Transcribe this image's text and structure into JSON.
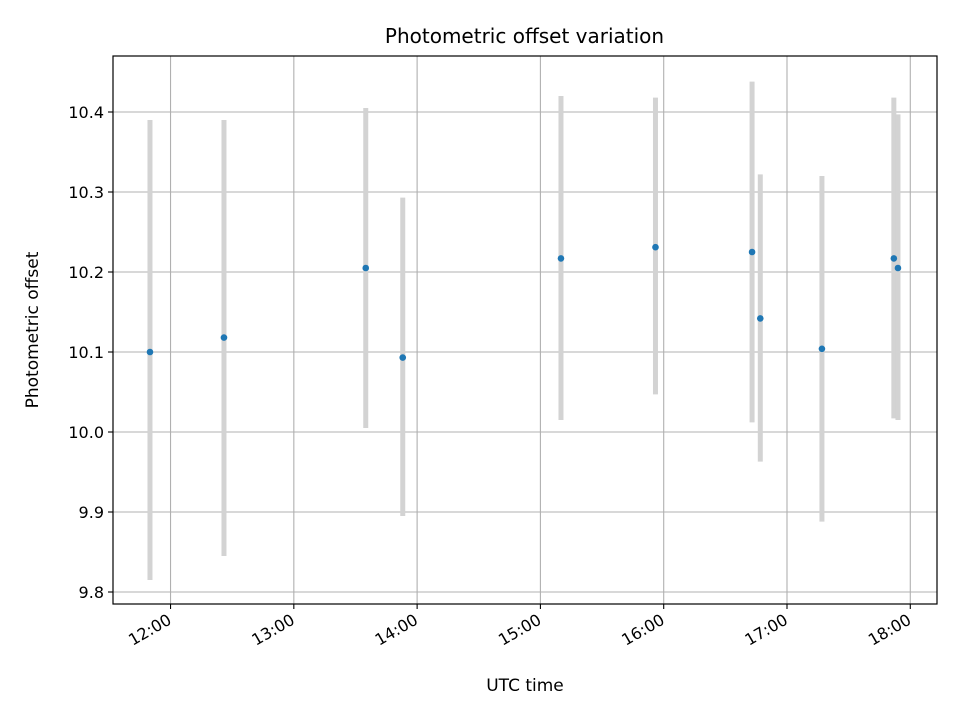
{
  "chart_data": {
    "type": "scatter",
    "title": "Photometric offset variation",
    "xlabel": "UTC time",
    "ylabel": "Photometric offset",
    "x_ticks": [
      "12:00",
      "13:00",
      "14:00",
      "15:00",
      "16:00",
      "17:00",
      "18:00"
    ],
    "y_ticks": [
      "9.8",
      "9.9",
      "10.0",
      "10.1",
      "10.2",
      "10.3",
      "10.4"
    ],
    "xlim": [
      "11:32",
      "18:13"
    ],
    "ylim": [
      9.785,
      10.47
    ],
    "grid": true,
    "colors": {
      "point": "#1f77b4",
      "errorbar": "#d3d3d3",
      "grid": "#b0b0b0"
    },
    "points": [
      {
        "time": "11:50",
        "y": 10.1,
        "ylow": 9.815,
        "yhigh": 10.39
      },
      {
        "time": "12:26",
        "y": 10.118,
        "ylow": 9.845,
        "yhigh": 10.39
      },
      {
        "time": "13:35",
        "y": 10.205,
        "ylow": 10.005,
        "yhigh": 10.405
      },
      {
        "time": "13:53",
        "y": 10.093,
        "ylow": 9.895,
        "yhigh": 10.293
      },
      {
        "time": "15:10",
        "y": 10.217,
        "ylow": 10.015,
        "yhigh": 10.42
      },
      {
        "time": "15:56",
        "y": 10.231,
        "ylow": 10.047,
        "yhigh": 10.418
      },
      {
        "time": "16:43",
        "y": 10.225,
        "ylow": 10.012,
        "yhigh": 10.438
      },
      {
        "time": "16:47",
        "y": 10.142,
        "ylow": 9.963,
        "yhigh": 10.322
      },
      {
        "time": "17:17",
        "y": 10.104,
        "ylow": 9.888,
        "yhigh": 10.32
      },
      {
        "time": "17:52",
        "y": 10.217,
        "ylow": 10.017,
        "yhigh": 10.418
      },
      {
        "time": "17:54",
        "y": 10.205,
        "ylow": 10.015,
        "yhigh": 10.397
      }
    ]
  }
}
